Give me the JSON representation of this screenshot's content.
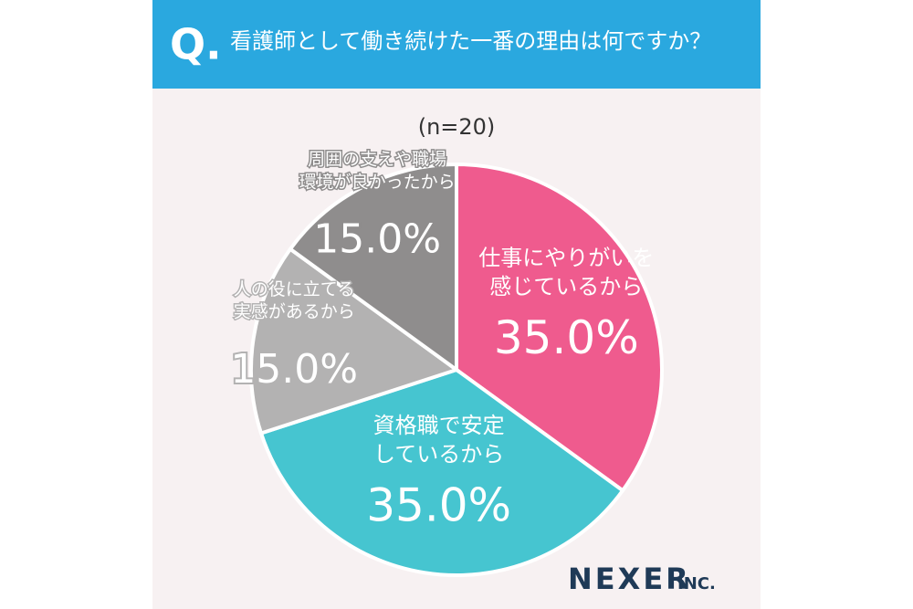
{
  "chart_data": {
    "type": "pie",
    "title_prefix": "Q.",
    "title": "看護師として働き続けた一番の理由は何ですか？",
    "subtitle": "(n=20)",
    "categories": [
      "仕事にやりがいを\n感じているから",
      "資格職で安定\nしているから",
      "人の役に立てる\n実感があるから",
      "周囲の支えや職場\n環境が良かったから"
    ],
    "values": [
      35.0,
      35.0,
      15.0,
      15.0
    ],
    "value_labels": [
      "35.0%",
      "35.0%",
      "15.0%",
      "15.0%"
    ],
    "colors": [
      "#ef5b8e",
      "#46c5d0",
      "#b3b2b2",
      "#8f8d8d"
    ],
    "brand": "NEXER",
    "brand_suffix": "INC."
  }
}
